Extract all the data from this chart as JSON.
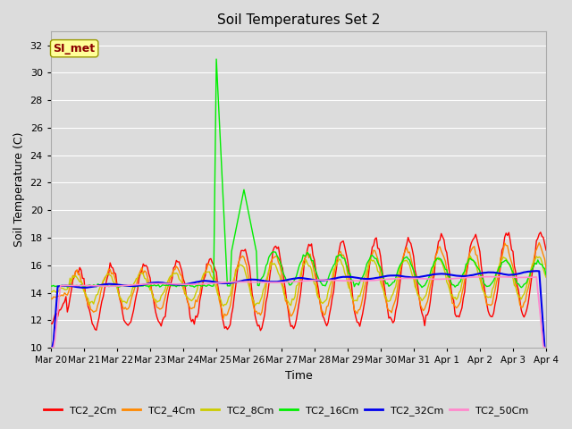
{
  "title": "Soil Temperatures Set 2",
  "xlabel": "Time",
  "ylabel": "Soil Temperature (C)",
  "ylim": [
    10,
    33
  ],
  "yticks": [
    10,
    12,
    14,
    16,
    18,
    20,
    22,
    24,
    26,
    28,
    30,
    32
  ],
  "background_color": "#dcdcdc",
  "plot_bg_color": "#dcdcdc",
  "grid_color": "#ffffff",
  "annotation_text": "SI_met",
  "annotation_color": "#8b0000",
  "annotation_bg": "#ffff99",
  "series_colors": {
    "TC2_2Cm": "#ff0000",
    "TC2_4Cm": "#ff8800",
    "TC2_8Cm": "#cccc00",
    "TC2_16Cm": "#00ee00",
    "TC2_32Cm": "#0000ee",
    "TC2_50Cm": "#ff88cc"
  },
  "x_tick_labels": [
    "Mar 20",
    "Mar 21",
    "Mar 22",
    "Mar 23",
    "Mar 24",
    "Mar 25",
    "Mar 26",
    "Mar 27",
    "Mar 28",
    "Mar 29",
    "Mar 30",
    "Mar 31",
    "Apr 1",
    "Apr 2",
    "Apr 3",
    "Apr 4"
  ]
}
